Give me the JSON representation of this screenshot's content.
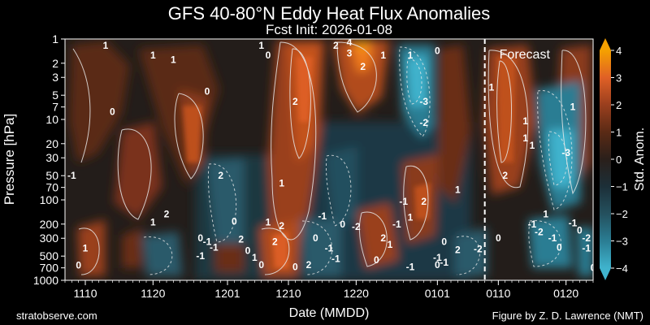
{
  "chart_data": {
    "type": "heatmap",
    "title": "GFS 40-80°N Eddy Heat Flux Anomalies",
    "subtitle": "Fcst Init: 2026-01-08",
    "xlabel": "Date (MMDD)",
    "ylabel": "Pressure [hPa]",
    "colorbar_label": "Std. Anom.",
    "x_start": "2025-11-07",
    "x_end": "2026-01-24",
    "forecast_start": "2026-01-08",
    "forecast_label": "Forecast",
    "x_ticks": [
      {
        "date": "2025-11-10",
        "label": "1110"
      },
      {
        "date": "2025-11-20",
        "label": "1120"
      },
      {
        "date": "2025-12-01",
        "label": "1201"
      },
      {
        "date": "2025-12-10",
        "label": "1210"
      },
      {
        "date": "2025-12-20",
        "label": "1220"
      },
      {
        "date": "2026-01-01",
        "label": "0101"
      },
      {
        "date": "2026-01-10",
        "label": "0110"
      },
      {
        "date": "2026-01-20",
        "label": "0120"
      }
    ],
    "y_scale": "log",
    "y_range": [
      1000,
      1
    ],
    "y_ticks": [
      1,
      2,
      3,
      5,
      7,
      10,
      20,
      30,
      50,
      70,
      100,
      200,
      300,
      500,
      700,
      1000
    ],
    "colorbar_range": [
      -4,
      4
    ],
    "colorbar_ticks": [
      -4,
      -3,
      -2,
      -1,
      0,
      1,
      2,
      3,
      4
    ],
    "colormap": [
      "#3fb3cd",
      "#2a7d93",
      "#24505e",
      "#1c2f38",
      "#2a1f1a",
      "#5a2a15",
      "#9a3f1e",
      "#e06026",
      "#f5a100"
    ],
    "contour_labels": [
      {
        "date": "2025-11-13",
        "p": 1.2,
        "v": "1"
      },
      {
        "date": "2025-11-20",
        "p": 1.6,
        "v": "1"
      },
      {
        "date": "2025-11-23",
        "p": 1.8,
        "v": "1"
      },
      {
        "date": "2025-12-06",
        "p": 1.2,
        "v": "1"
      },
      {
        "date": "2025-12-07",
        "p": 1.6,
        "v": "0"
      },
      {
        "date": "2025-12-17",
        "p": 1.2,
        "v": "2"
      },
      {
        "date": "2025-12-19",
        "p": 1.1,
        "v": "4"
      },
      {
        "date": "2025-12-19",
        "p": 1.5,
        "v": "3"
      },
      {
        "date": "2025-12-21",
        "p": 2.2,
        "v": "2"
      },
      {
        "date": "2025-12-24",
        "p": 1.6,
        "v": "1"
      },
      {
        "date": "2025-12-28",
        "p": 1.6,
        "v": "1"
      },
      {
        "date": "2026-01-01",
        "p": 1.4,
        "v": "0"
      },
      {
        "date": "2025-11-28",
        "p": 4.5,
        "v": "0"
      },
      {
        "date": "2025-11-14",
        "p": 8.0,
        "v": "0"
      },
      {
        "date": "2025-12-11",
        "p": 6.0,
        "v": "2"
      },
      {
        "date": "2025-12-30",
        "p": 6.0,
        "v": "-3"
      },
      {
        "date": "2025-12-30",
        "p": 11.0,
        "v": "-2"
      },
      {
        "date": "2026-01-09",
        "p": 4.0,
        "v": "1"
      },
      {
        "date": "2026-01-21",
        "p": 7.0,
        "v": "1"
      },
      {
        "date": "2026-01-14",
        "p": 10.5,
        "v": "1"
      },
      {
        "date": "2026-01-14",
        "p": 17.0,
        "v": "1"
      },
      {
        "date": "2026-01-15",
        "p": 21.0,
        "v": "1"
      },
      {
        "date": "2026-01-20",
        "p": 26.0,
        "v": "-3"
      },
      {
        "date": "2025-11-08",
        "p": 50.0,
        "v": "-1"
      },
      {
        "date": "2025-11-30",
        "p": 50.0,
        "v": "2"
      },
      {
        "date": "2025-12-09",
        "p": 62.0,
        "v": "1"
      },
      {
        "date": "2026-01-11",
        "p": 50.0,
        "v": "2"
      },
      {
        "date": "2026-01-04",
        "p": 75.0,
        "v": "1"
      },
      {
        "date": "2025-11-22",
        "p": 150.0,
        "v": "2"
      },
      {
        "date": "2025-11-20",
        "p": 190.0,
        "v": "1"
      },
      {
        "date": "2025-12-02",
        "p": 185.0,
        "v": "0"
      },
      {
        "date": "2025-12-07",
        "p": 190.0,
        "v": "1"
      },
      {
        "date": "2025-12-09",
        "p": 210.0,
        "v": "2"
      },
      {
        "date": "2025-12-15",
        "p": 160.0,
        "v": "-1"
      },
      {
        "date": "2025-12-18",
        "p": 200.0,
        "v": "0"
      },
      {
        "date": "2025-12-20",
        "p": 215.0,
        "v": "-2"
      },
      {
        "date": "2025-12-27",
        "p": 105.0,
        "v": "-1"
      },
      {
        "date": "2025-12-30",
        "p": 105.0,
        "v": "2"
      },
      {
        "date": "2025-12-28",
        "p": 165.0,
        "v": "1"
      },
      {
        "date": "2025-12-26",
        "p": 200.0,
        "v": "-1"
      },
      {
        "date": "2026-01-17",
        "p": 150.0,
        "v": "1"
      },
      {
        "date": "2026-01-15",
        "p": 200.0,
        "v": "-1"
      },
      {
        "date": "2026-01-16",
        "p": 250.0,
        "v": "-2"
      },
      {
        "date": "2026-01-21",
        "p": 195.0,
        "v": "-1"
      },
      {
        "date": "2026-01-22",
        "p": 240.0,
        "v": "0"
      },
      {
        "date": "2025-11-10",
        "p": 400.0,
        "v": "1"
      },
      {
        "date": "2025-11-27",
        "p": 300.0,
        "v": "0"
      },
      {
        "date": "2025-11-28",
        "p": 330.0,
        "v": "-1"
      },
      {
        "date": "2025-11-29",
        "p": 390.0,
        "v": "-1"
      },
      {
        "date": "2025-12-03",
        "p": 310.0,
        "v": "2"
      },
      {
        "date": "2025-12-04",
        "p": 430.0,
        "v": "0"
      },
      {
        "date": "2025-12-08",
        "p": 330.0,
        "v": "2"
      },
      {
        "date": "2025-12-14",
        "p": 300.0,
        "v": "0"
      },
      {
        "date": "2025-12-16",
        "p": 400.0,
        "v": "-1"
      },
      {
        "date": "2025-12-24",
        "p": 300.0,
        "v": "2"
      },
      {
        "date": "2025-12-25",
        "p": 360.0,
        "v": "1"
      },
      {
        "date": "2026-01-02",
        "p": 330.0,
        "v": "0"
      },
      {
        "date": "2026-01-04",
        "p": 420.0,
        "v": "2"
      },
      {
        "date": "2026-01-07",
        "p": 410.0,
        "v": "-2"
      },
      {
        "date": "2026-01-10",
        "p": 300.0,
        "v": "0"
      },
      {
        "date": "2026-01-18",
        "p": 300.0,
        "v": "-1"
      },
      {
        "date": "2026-01-19",
        "p": 390.0,
        "v": "0"
      },
      {
        "date": "2026-01-23",
        "p": 300.0,
        "v": "-2"
      },
      {
        "date": "2026-01-23",
        "p": 400.0,
        "v": "-1"
      },
      {
        "date": "2025-11-09",
        "p": 650.0,
        "v": "0"
      },
      {
        "date": "2025-11-27",
        "p": 500.0,
        "v": "-1"
      },
      {
        "date": "2025-12-05",
        "p": 520.0,
        "v": "1"
      },
      {
        "date": "2025-12-06",
        "p": 640.0,
        "v": "0"
      },
      {
        "date": "2025-12-11",
        "p": 680.0,
        "v": "0"
      },
      {
        "date": "2025-12-13",
        "p": 640.0,
        "v": "2"
      },
      {
        "date": "2025-12-17",
        "p": 540.0,
        "v": "-1"
      },
      {
        "date": "2025-12-23",
        "p": 560.0,
        "v": "0"
      },
      {
        "date": "2025-12-28",
        "p": 680.0,
        "v": "-1"
      },
      {
        "date": "2026-01-01",
        "p": 520.0,
        "v": "-1"
      },
      {
        "date": "2026-01-01",
        "p": 640.0,
        "v": "0"
      },
      {
        "date": "2026-01-02",
        "p": 600.0,
        "v": "-1"
      },
      {
        "date": "2026-01-24",
        "p": 700.0,
        "v": "0"
      }
    ]
  },
  "credits": {
    "left": "stratobserve.com",
    "right": "Figure by Z. D. Lawrence (NMT)"
  }
}
